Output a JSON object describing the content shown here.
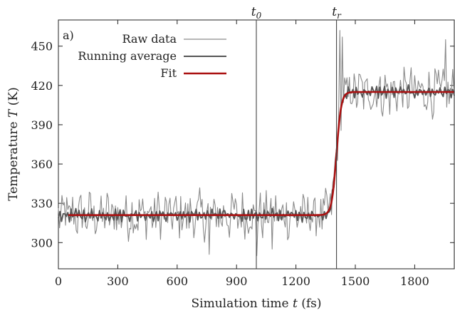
{
  "chart_data": {
    "type": "line",
    "panel_label": "a)",
    "xlabel_prefix": "Simulation time ",
    "xlabel_var": "t",
    "xlabel_suffix": " (fs)",
    "ylabel_prefix": "Temperature ",
    "ylabel_var": "T",
    "ylabel_suffix": " (K)",
    "xlim": [
      0,
      2000
    ],
    "ylim": [
      280,
      470
    ],
    "xticks": [
      0,
      300,
      600,
      900,
      1200,
      1500,
      1800
    ],
    "yticks": [
      300,
      330,
      360,
      390,
      420,
      450
    ],
    "legend_position": "top-left",
    "markers": [
      {
        "base": "t",
        "sub": "0",
        "x": 1000
      },
      {
        "base": "t",
        "sub": "r",
        "x": 1405
      }
    ],
    "series": [
      {
        "name": "Raw data",
        "color": "#8a8a8a",
        "style": "thin",
        "baseline": 321,
        "noise": 17,
        "transition": {
          "t_r": 1405,
          "width": 12,
          "low": 321,
          "high": 415
        },
        "extra_peaks": [
          [
            1425,
            462
          ],
          [
            1437,
            457
          ],
          [
            1955,
            455
          ]
        ],
        "extra_dips": [
          [
            1000,
            290
          ],
          [
            760,
            291
          ],
          [
            1080,
            295
          ]
        ]
      },
      {
        "name": "Running average",
        "color": "#555555",
        "style": "medium",
        "baseline": 321,
        "noise": 5,
        "transition": {
          "t_r": 1405,
          "width": 12,
          "low": 321,
          "high": 415
        }
      },
      {
        "name": "Fit",
        "color": "#aa1111",
        "style": "thick",
        "x_start": 50,
        "transition": {
          "t_r": 1405,
          "width": 12,
          "low": 321,
          "high": 415
        }
      }
    ]
  }
}
